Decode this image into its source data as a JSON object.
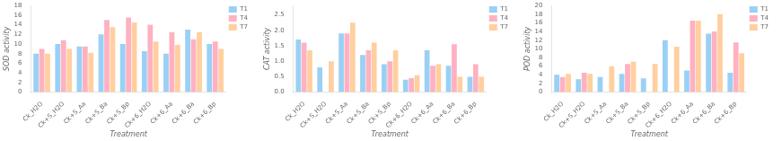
{
  "chart_data": [
    {
      "type": "bar",
      "categories": [
        "Ck_H2O",
        "Ck+S_H2O",
        "Ck+S_Aa",
        "Ck+S_Ba",
        "Ck+S_Bp",
        "Ck+6_H2O",
        "Ck+6_Aa",
        "Ck+6_Ba",
        "Ck+6_Bp"
      ],
      "series": [
        {
          "name": "T1",
          "values": [
            8.0,
            10.0,
            9.5,
            12.0,
            10.0,
            8.5,
            8.0,
            13.0,
            10.0
          ]
        },
        {
          "name": "T4",
          "values": [
            9.0,
            10.8,
            9.5,
            15.0,
            15.5,
            14.0,
            12.5,
            11.0,
            10.5
          ]
        },
        {
          "name": "T7",
          "values": [
            8.0,
            9.0,
            8.2,
            13.5,
            14.5,
            10.5,
            9.8,
            12.5,
            9.0
          ]
        }
      ],
      "xlabel": "Treatment",
      "ylabel": "SOD activity",
      "ylim": [
        0,
        18
      ],
      "yticks": [
        0,
        2,
        4,
        6,
        8,
        10,
        12,
        14,
        16,
        18
      ],
      "grid": false,
      "legend": "upper right"
    },
    {
      "type": "bar",
      "categories": [
        "Ck_H2O",
        "Ck+S_H2O",
        "Ck+S_Aa",
        "Ck+S_Ba",
        "Ck+S_Bp",
        "Ck+6_H2O",
        "Ck+6_Aa",
        "Ck+6_Ba",
        "Ck+6_Bp"
      ],
      "series": [
        {
          "name": "T1",
          "values": [
            1.7,
            0.8,
            1.9,
            1.2,
            0.9,
            0.4,
            1.35,
            0.85,
            0.5
          ]
        },
        {
          "name": "T4",
          "values": [
            1.6,
            0.0,
            1.9,
            1.35,
            1.0,
            0.45,
            0.85,
            1.55,
            0.9
          ]
        },
        {
          "name": "T7",
          "values": [
            1.35,
            1.0,
            2.25,
            1.6,
            1.35,
            0.55,
            0.9,
            0.5,
            0.5
          ]
        }
      ],
      "xlabel": "Treatment",
      "ylabel": "CAT activity",
      "ylim": [
        0.0,
        2.8
      ],
      "yticks": [
        {
          "value": 0,
          "label": "0.0"
        },
        0.5,
        {
          "value": 1,
          "label": "1.0"
        },
        1.5,
        {
          "value": 2,
          "label": "2.0"
        },
        2.5
      ],
      "grid": false,
      "legend": "upper right"
    },
    {
      "type": "bar",
      "categories": [
        "Ck_H2O",
        "Ck+S_H2O",
        "Ck+S_Aa",
        "Ck+S_Ba",
        "Ck+S_Bp",
        "Ck+6_H2O",
        "Ck+6_Aa",
        "Ck+6_Ba",
        "Ck+6_Bp"
      ],
      "series": [
        {
          "name": "T1",
          "values": [
            4.0,
            3.0,
            3.5,
            4.2,
            3.2,
            12.0,
            5.0,
            13.5,
            4.5
          ]
        },
        {
          "name": "T4",
          "values": [
            3.5,
            4.5,
            0.0,
            6.5,
            0.0,
            0.0,
            16.5,
            14.0,
            11.5
          ]
        },
        {
          "name": "T7",
          "values": [
            4.2,
            4.2,
            6.0,
            7.0,
            6.5,
            10.5,
            16.5,
            18.0,
            9.0
          ]
        }
      ],
      "xlabel": "Treatment",
      "ylabel": "POD activity",
      "ylim": [
        0,
        20
      ],
      "yticks": [
        0,
        2,
        4,
        6,
        8,
        10,
        12,
        14,
        16,
        18,
        20
      ],
      "grid": false,
      "legend": "upper right"
    }
  ]
}
